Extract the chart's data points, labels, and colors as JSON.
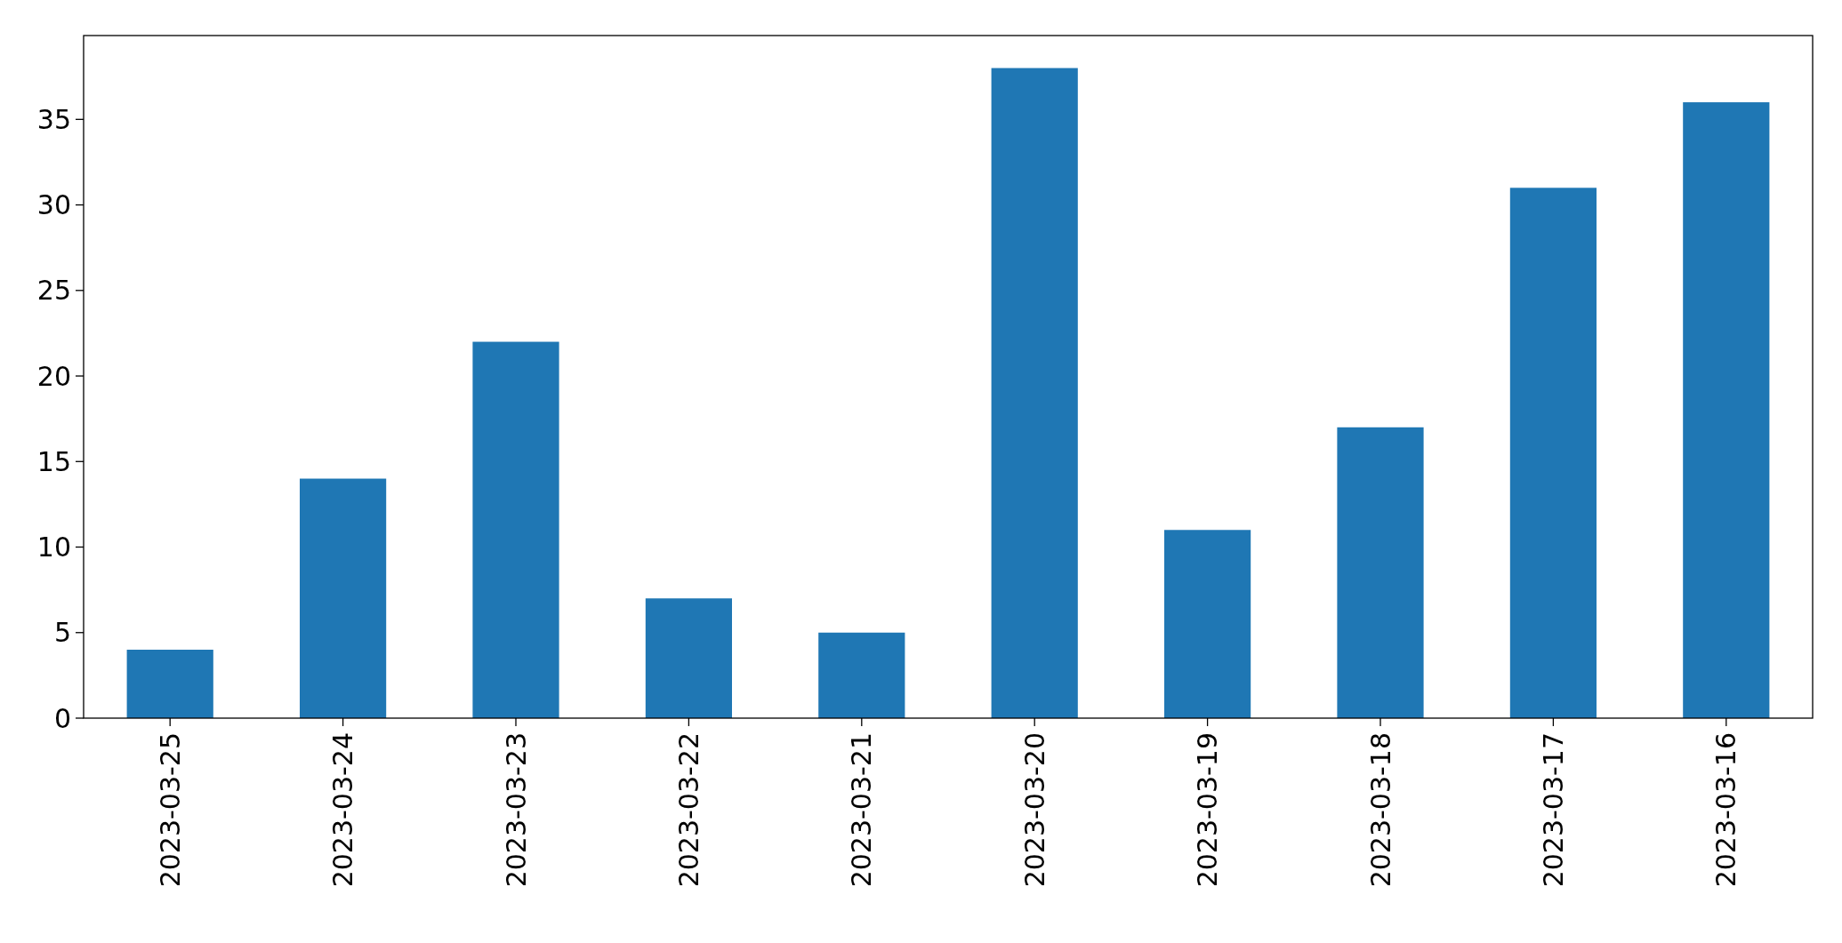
{
  "chart_data": {
    "type": "bar",
    "categories": [
      "2023-03-25",
      "2023-03-24",
      "2023-03-23",
      "2023-03-22",
      "2023-03-21",
      "2023-03-20",
      "2023-03-19",
      "2023-03-18",
      "2023-03-17",
      "2023-03-16"
    ],
    "values": [
      4,
      14,
      22,
      7,
      5,
      38,
      11,
      17,
      31,
      36
    ],
    "color": "#1f77b4",
    "ylim": [
      0,
      39.9
    ],
    "yticks": [
      0,
      5,
      10,
      15,
      20,
      25,
      30,
      35
    ],
    "grid": false
  }
}
